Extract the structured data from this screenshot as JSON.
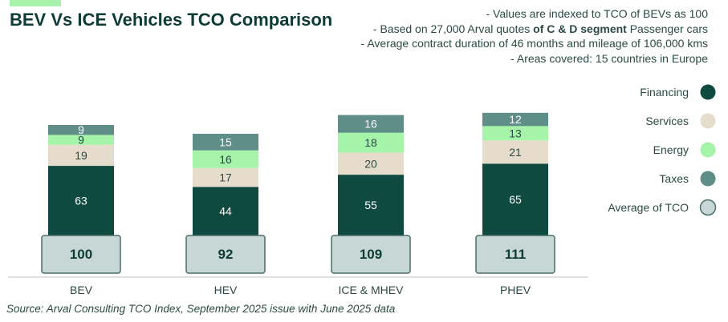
{
  "title": "BEV Vs ICE Vehicles TCO Comparison",
  "notes": [
    {
      "pre": "- Values are indexed to TCO of BEVs as 100",
      "bold": "",
      "post": ""
    },
    {
      "pre": "- Based on 27,000 Arval quotes ",
      "bold": "of C & D segment",
      "post": " Passenger cars"
    },
    {
      "pre": "-    Average contract duration of 46 months and mileage of 106,000 kms",
      "bold": "",
      "post": ""
    },
    {
      "pre": "-    Areas covered: 15 countries in Europe",
      "bold": "",
      "post": ""
    }
  ],
  "source": "Source: Arval Consulting TCO Index, September 2025 issue with June 2025 data",
  "colors": {
    "Financing": "#0e4a40",
    "Services": "#e6dccb",
    "Energy": "#a6f4aa",
    "Taxes": "#5f8d88",
    "Average of TCO": "#c7d7d6",
    "accent": "#a9f2ae"
  },
  "chart_data": {
    "type": "bar",
    "stacked": true,
    "categories": [
      "BEV",
      "HEV",
      "ICE & MHEV",
      "PHEV"
    ],
    "series": [
      {
        "name": "Financing",
        "values": [
          63,
          44,
          55,
          65
        ]
      },
      {
        "name": "Services",
        "values": [
          19,
          17,
          20,
          21
        ]
      },
      {
        "name": "Energy",
        "values": [
          9,
          16,
          18,
          13
        ]
      },
      {
        "name": "Taxes",
        "values": [
          9,
          15,
          16,
          12
        ]
      }
    ],
    "totals": {
      "name": "Average of TCO",
      "values": [
        100,
        92,
        109,
        111
      ]
    },
    "legend": [
      "Financing",
      "Services",
      "Energy",
      "Taxes",
      "Average of TCO"
    ],
    "legend_position": "right",
    "grid": false
  }
}
